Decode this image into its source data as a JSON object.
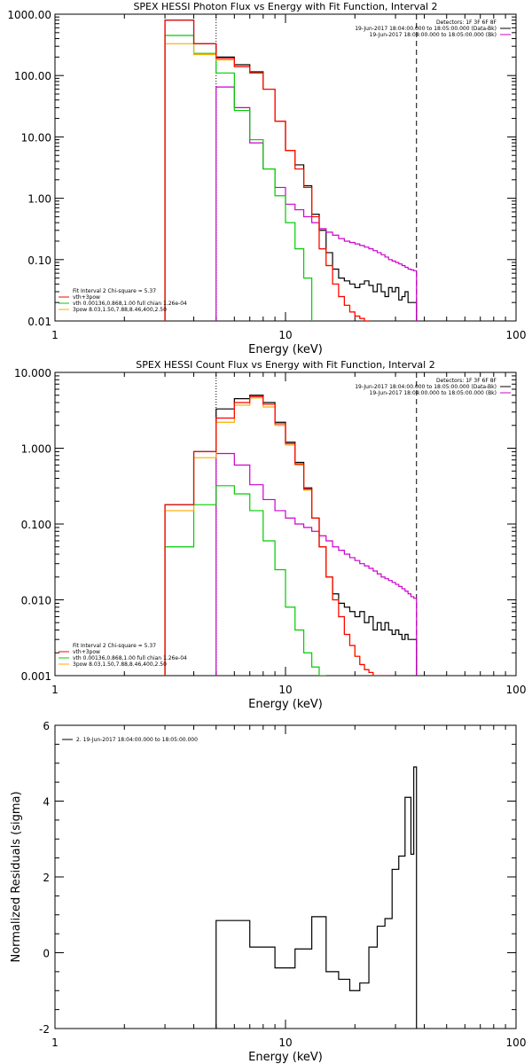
{
  "chart_data": [
    {
      "id": "photon",
      "type": "line",
      "title": "SPEX HESSI Photon Flux vs Energy with Fit Function, Interval 2",
      "xlabel": "Energy (keV)",
      "ylabel": "",
      "xscale": "log",
      "yscale": "log",
      "xlim": [
        1,
        100
      ],
      "ylim": [
        0.01,
        1000
      ],
      "x_ticks": [
        "1",
        "10",
        "100"
      ],
      "y_ticks": [
        "1000.00",
        "100.00",
        "10.00",
        "1.00",
        "0.10",
        "0.01"
      ],
      "markers": [
        {
          "x": 5.0,
          "style": "dotted"
        },
        {
          "x": 37.0,
          "style": "dashed"
        }
      ],
      "legend_topright": [
        {
          "text": "Detectors: 1F 3F 6F 8F",
          "color": ""
        },
        {
          "text": "19-Jun-2017 18:04:00.000 to 18:05:00.000 (Data-Bk)",
          "color": "#000000"
        },
        {
          "text": "19-Jun-2017 18:04:00.000 to 18:05:00.000 (Bk)",
          "color": "#cc00cc"
        }
      ],
      "legend_bottomleft": [
        {
          "text": "Fit Interval 2   Chi-square = 5.37",
          "color": ""
        },
        {
          "text": "vth+3pow",
          "color": "#ff0000"
        },
        {
          "text": "vth 0.00136,0.868,1.00  full chian 1.26e-04",
          "color": "#00cc00"
        },
        {
          "text": "3pow 8.03,1.50,7.88,8.46,400,2.50",
          "color": "#ffaa00"
        }
      ],
      "edges": [
        3,
        4,
        5,
        6,
        7,
        8,
        9,
        10,
        11,
        12,
        13,
        14,
        15,
        16,
        17,
        18,
        19,
        20,
        21,
        22,
        23,
        24,
        25,
        26,
        27,
        28,
        29,
        30,
        31,
        32,
        33,
        34,
        35,
        36,
        37
      ],
      "edges_note": "",
      "series": [
        {
          "name": "",
          "color": "#000000",
          "start": 3,
          "end": 37,
          "values": [
            800,
            330,
            200,
            150,
            115,
            60,
            18,
            6,
            3.5,
            1.6,
            0.55,
            0.3,
            0.13,
            0.07,
            0.05,
            0.045,
            0.04,
            0.035,
            0.04,
            0.045,
            0.038,
            0.03,
            0.04,
            0.03,
            0.025,
            0.035,
            0.03,
            0.035,
            0.022,
            0.025,
            0.03,
            0.02,
            0.02,
            0.02
          ]
        },
        {
          "name": "",
          "color": "#cc00cc",
          "start": 5,
          "end": 37,
          "values": [
            65,
            30,
            8,
            3,
            1.5,
            0.8,
            0.65,
            0.5,
            0.4,
            0.32,
            0.28,
            0.25,
            0.22,
            0.2,
            0.19,
            0.18,
            0.17,
            0.16,
            0.15,
            0.14,
            0.13,
            0.12,
            0.11,
            0.1,
            0.095,
            0.09,
            0.085,
            0.08,
            0.075,
            0.07,
            0.068,
            0.066
          ]
        },
        {
          "name": "",
          "color": "#00cc00",
          "start": 3,
          "end": 13,
          "values": [
            450,
            230,
            110,
            27,
            9,
            3,
            1.1,
            0.4,
            0.15,
            0.05
          ]
        },
        {
          "name": "",
          "color": "#ffaa00",
          "start": 3,
          "end": 23,
          "values": [
            330,
            220,
            180,
            140,
            110,
            60,
            18,
            6,
            3,
            1.5,
            0.5,
            0.15,
            0.08,
            0.04,
            0.025,
            0.018,
            0.014,
            0.012,
            0.011,
            0.01
          ]
        },
        {
          "name": "",
          "color": "#ff0000",
          "start": 3,
          "end": 23,
          "values": [
            800,
            330,
            190,
            140,
            110,
            60,
            18,
            6,
            3,
            1.5,
            0.5,
            0.15,
            0.08,
            0.04,
            0.025,
            0.018,
            0.014,
            0.012,
            0.011,
            0.01
          ]
        }
      ]
    },
    {
      "id": "count",
      "type": "line",
      "title": "SPEX HESSI Count Flux vs Energy with Fit Function, Interval 2",
      "xlabel": "Energy (keV)",
      "ylabel": "",
      "xscale": "log",
      "yscale": "log",
      "xlim": [
        1,
        100
      ],
      "ylim": [
        0.001,
        10
      ],
      "x_ticks": [
        "1",
        "10",
        "100"
      ],
      "y_ticks": [
        "10.000",
        "1.000",
        "0.100",
        "0.010",
        "0.001"
      ],
      "markers": [
        {
          "x": 5.0,
          "style": "dotted"
        },
        {
          "x": 37.0,
          "style": "dashed"
        }
      ],
      "legend_topright": [
        {
          "text": "Detectors: 1F 3F 6F 8F",
          "color": ""
        },
        {
          "text": "19-Jun-2017 18:04:00.000 to 18:05:00.000 (Data-Bk)",
          "color": "#000000"
        },
        {
          "text": "19-Jun-2017 18:04:00.000 to 18:05:00.000 (Bk)",
          "color": "#cc00cc"
        }
      ],
      "legend_bottomleft": [
        {
          "text": "Fit Interval 2   Chi-square = 5.37",
          "color": ""
        },
        {
          "text": "vth+3pow",
          "color": "#ff0000"
        },
        {
          "text": "vth 0.00136,0.868,1.00  full chian 1.26e-04",
          "color": "#00cc00"
        },
        {
          "text": "3pow 8.03,1.50,7.88,8.46,400,2.50",
          "color": "#ffaa00"
        }
      ],
      "edges": [
        3,
        4,
        5,
        6,
        7,
        8,
        9,
        10,
        11,
        12,
        13,
        14,
        15,
        16,
        17,
        18,
        19,
        20,
        21,
        22,
        23,
        24,
        25,
        26,
        27,
        28,
        29,
        30,
        31,
        32,
        33,
        34,
        35,
        36,
        37
      ],
      "edges_note": "",
      "series": [
        {
          "name": "",
          "color": "#000000",
          "start": 3,
          "end": 37,
          "values": [
            0.18,
            0.9,
            3.3,
            4.5,
            5,
            4,
            2.2,
            1.2,
            0.65,
            0.3,
            0.12,
            0.05,
            0.02,
            0.012,
            0.009,
            0.008,
            0.007,
            0.006,
            0.007,
            0.005,
            0.006,
            0.004,
            0.005,
            0.004,
            0.005,
            0.004,
            0.0035,
            0.004,
            0.0035,
            0.003,
            0.0035,
            0.003,
            0.003,
            0.003
          ]
        },
        {
          "name": "",
          "color": "#cc00cc",
          "start": 5,
          "end": 37,
          "values": [
            0.85,
            0.6,
            0.33,
            0.21,
            0.15,
            0.12,
            0.1,
            0.09,
            0.08,
            0.07,
            0.06,
            0.05,
            0.045,
            0.04,
            0.036,
            0.033,
            0.03,
            0.028,
            0.026,
            0.024,
            0.022,
            0.02,
            0.019,
            0.018,
            0.017,
            0.016,
            0.015,
            0.014,
            0.013,
            0.012,
            0.011,
            0.0105
          ]
        },
        {
          "name": "",
          "color": "#00cc00",
          "start": 3,
          "end": 15,
          "values": [
            0.05,
            0.18,
            0.32,
            0.25,
            0.15,
            0.06,
            0.025,
            0.008,
            0.004,
            0.002,
            0.0013,
            0.001
          ]
        },
        {
          "name": "",
          "color": "#ffaa00",
          "start": 3,
          "end": 28,
          "values": [
            0.15,
            0.75,
            2.2,
            3.7,
            4.6,
            3.5,
            2.0,
            1.1,
            0.6,
            0.28,
            0.12,
            0.05,
            0.02,
            0.01,
            0.006,
            0.0035,
            0.0025,
            0.0018,
            0.0014,
            0.0012,
            0.0011,
            0.001,
            0.001,
            0.001,
            0.001
          ]
        },
        {
          "name": "",
          "color": "#ff0000",
          "start": 3,
          "end": 28,
          "values": [
            0.18,
            0.9,
            2.5,
            4.0,
            4.8,
            3.8,
            2.1,
            1.15,
            0.62,
            0.29,
            0.12,
            0.05,
            0.02,
            0.01,
            0.006,
            0.0035,
            0.0025,
            0.0018,
            0.0014,
            0.0012,
            0.0011,
            0.001,
            0.001,
            0.001,
            0.001
          ]
        }
      ]
    },
    {
      "id": "residuals",
      "type": "line",
      "title": "",
      "xlabel": "Energy (keV)",
      "ylabel": "Normalized Residuals (sigma)",
      "xscale": "log",
      "yscale": "linear",
      "xlim": [
        1,
        100
      ],
      "ylim": [
        -2,
        6
      ],
      "x_ticks": [
        "1",
        "10",
        "100"
      ],
      "y_ticks": [
        "6",
        "4",
        "2",
        "0",
        "-2"
      ],
      "legend_topleft": [
        {
          "text": "2. 19-Jun-2017 18:04:00.000 to 18:05:00.000",
          "color": "#000000"
        }
      ],
      "series": [
        {
          "name": "",
          "color": "#000000",
          "start": 5,
          "end": 37,
          "edges": [
            5,
            6,
            7,
            8,
            9,
            10,
            11,
            12,
            13,
            14,
            15,
            16,
            17,
            18,
            19,
            20,
            21,
            22,
            23,
            24,
            25,
            26,
            27,
            28,
            29,
            30,
            31,
            32,
            33,
            34,
            35,
            36,
            37
          ],
          "values": [
            0.85,
            0.85,
            0.15,
            0.15,
            -0.4,
            -0.4,
            0.1,
            0.1,
            0.95,
            0.95,
            -0.5,
            -0.5,
            -0.7,
            -0.7,
            -1.0,
            -1.0,
            -0.8,
            -0.8,
            0.15,
            0.15,
            0.7,
            0.7,
            0.9,
            0.9,
            2.2,
            2.2,
            2.55,
            2.55,
            4.1,
            4.1,
            2.6,
            4.9,
            3.7
          ]
        }
      ]
    }
  ]
}
